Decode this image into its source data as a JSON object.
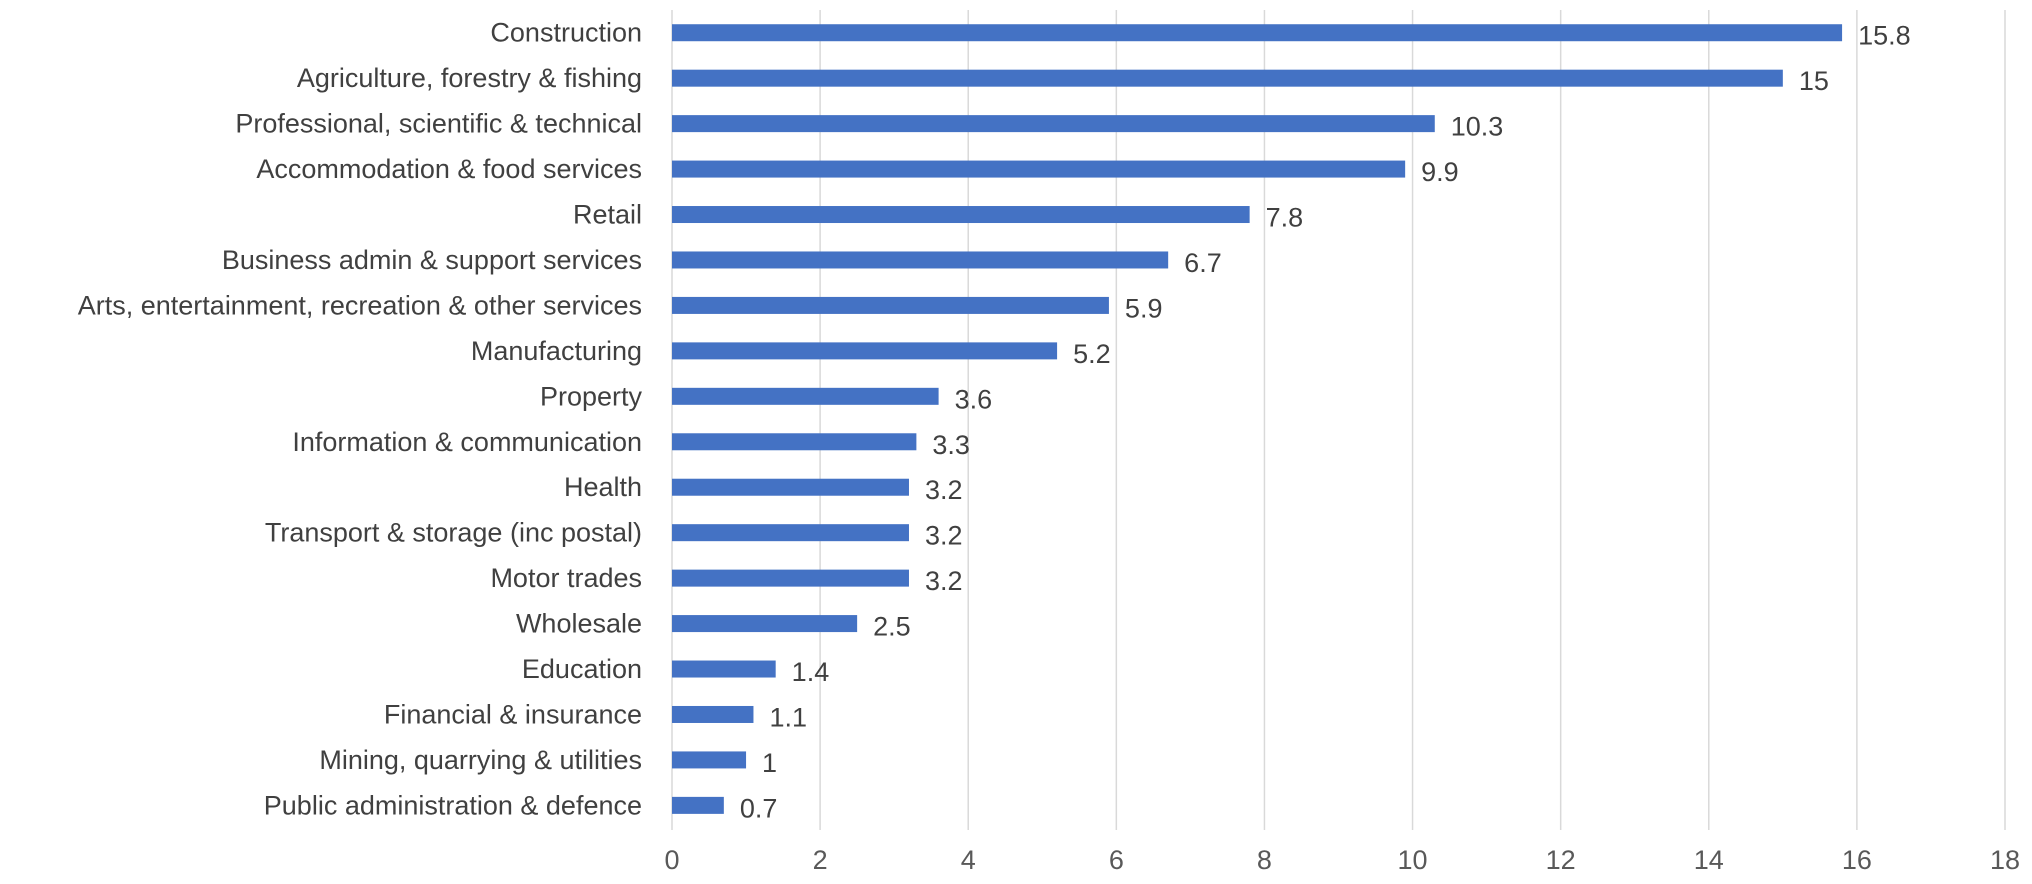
{
  "chart_data": {
    "type": "bar",
    "orientation": "horizontal",
    "title": "",
    "xlabel": "",
    "ylabel": "",
    "categories": [
      "Construction",
      "Agriculture, forestry & fishing",
      "Professional, scientific & technical",
      "Accommodation & food services",
      "Retail",
      "Business admin & support services",
      "Arts, entertainment, recreation & other services",
      "Manufacturing",
      "Property",
      "Information & communication",
      "Health",
      "Transport & storage (inc postal)",
      "Motor trades",
      "Wholesale",
      "Education",
      "Financial & insurance",
      "Mining, quarrying & utilities",
      "Public administration & defence"
    ],
    "values": [
      15.8,
      15,
      10.3,
      9.9,
      7.8,
      6.7,
      5.9,
      5.2,
      3.6,
      3.3,
      3.2,
      3.2,
      3.2,
      2.5,
      1.4,
      1.1,
      1,
      0.7
    ],
    "value_labels": [
      "15.8",
      "15",
      "10.3",
      "9.9",
      "7.8",
      "6.7",
      "5.9",
      "5.2",
      "3.6",
      "3.3",
      "3.2",
      "3.2",
      "3.2",
      "2.5",
      "1.4",
      "1.1",
      "1",
      "0.7"
    ],
    "xlim": [
      0,
      18
    ],
    "x_ticks": [
      0,
      2,
      4,
      6,
      8,
      10,
      12,
      14,
      16,
      18
    ],
    "x_tick_labels": [
      "0",
      "2",
      "4",
      "6",
      "8",
      "10",
      "12",
      "14",
      "16",
      "18"
    ],
    "grid": "vertical",
    "legend": "none",
    "bar_color": "#4472c4",
    "text_color": "#404040",
    "grid_color": "#d9d9d9"
  }
}
